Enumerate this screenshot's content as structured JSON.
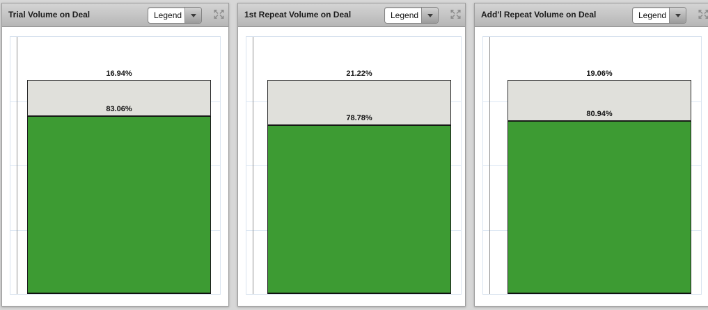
{
  "page": {
    "background": "#d7d7d7"
  },
  "colors": {
    "green_segment": "#3d9b33",
    "gray_segment": "#e0e0db",
    "gridline": "#dbe6f3",
    "axis_line": "#909090",
    "header_text": "#1c1c1c"
  },
  "panels": [
    {
      "title": "Trial Volume on Deal",
      "legend": {
        "label": "Legend"
      },
      "controls": {
        "maximize_icon": "expand-arrows-icon"
      },
      "segments": [
        {
          "label": "16.94%",
          "value": 16.94,
          "color": "#e0e0db"
        },
        {
          "label": "83.06%",
          "value": 83.06,
          "color": "#3d9b33"
        }
      ]
    },
    {
      "title": "1st Repeat Volume on Deal",
      "legend": {
        "label": "Legend"
      },
      "controls": {
        "maximize_icon": "expand-arrows-icon"
      },
      "segments": [
        {
          "label": "21.22%",
          "value": 21.22,
          "color": "#e0e0db"
        },
        {
          "label": "78.78%",
          "value": 78.78,
          "color": "#3d9b33"
        }
      ]
    },
    {
      "title": "Add'l Repeat Volume on Deal",
      "legend": {
        "label": "Legend"
      },
      "controls": {
        "maximize_icon": "expand-arrows-icon"
      },
      "segments": [
        {
          "label": "19.06%",
          "value": 19.06,
          "color": "#e0e0db"
        },
        {
          "label": "80.94%",
          "value": 80.94,
          "color": "#3d9b33"
        }
      ]
    }
  ],
  "chart_data": [
    {
      "type": "bar",
      "subtype": "100%-stacked-column",
      "title": "Trial Volume on Deal",
      "categories": [
        ""
      ],
      "series": [
        {
          "name": "green-lower-segment",
          "color": "#3d9b33",
          "values": [
            83.06
          ]
        },
        {
          "name": "gray-upper-segment",
          "color": "#e0e0db",
          "values": [
            16.94
          ]
        }
      ],
      "value_format": "percent",
      "data_labels": true,
      "grid": true,
      "legend_position": "collapsed-dropdown-in-header"
    },
    {
      "type": "bar",
      "subtype": "100%-stacked-column",
      "title": "1st Repeat Volume on Deal",
      "categories": [
        ""
      ],
      "series": [
        {
          "name": "green-lower-segment",
          "color": "#3d9b33",
          "values": [
            78.78
          ]
        },
        {
          "name": "gray-upper-segment",
          "color": "#e0e0db",
          "values": [
            21.22
          ]
        }
      ],
      "value_format": "percent",
      "data_labels": true,
      "grid": true,
      "legend_position": "collapsed-dropdown-in-header"
    },
    {
      "type": "bar",
      "subtype": "100%-stacked-column",
      "title": "Add'l Repeat Volume on Deal",
      "categories": [
        ""
      ],
      "series": [
        {
          "name": "green-lower-segment",
          "color": "#3d9b33",
          "values": [
            80.94
          ]
        },
        {
          "name": "gray-upper-segment",
          "color": "#e0e0db",
          "values": [
            19.06
          ]
        }
      ],
      "value_format": "percent",
      "data_labels": true,
      "grid": true,
      "legend_position": "collapsed-dropdown-in-header"
    }
  ]
}
